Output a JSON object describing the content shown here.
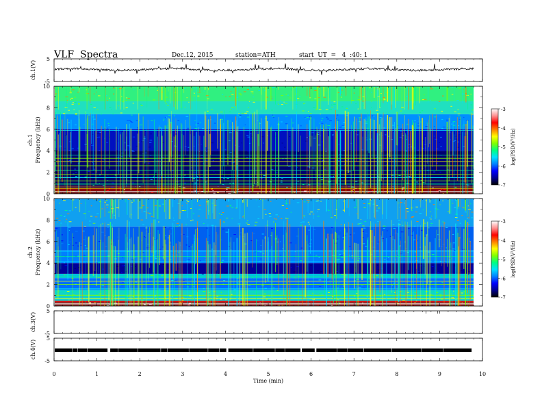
{
  "header": {
    "title": "VLF  Spectra",
    "date": "Dec.12, 2015",
    "station": "station=ATH",
    "start": "start  UT  =   4  :40: 1"
  },
  "chart_data": {
    "type": "heatmap",
    "title": "VLF  Spectra",
    "xlabel": "Time  (min)",
    "xlim": [
      0,
      10
    ],
    "x_ticks": [
      "0",
      "1",
      "2",
      "3",
      "4",
      "5",
      "6",
      "7",
      "8",
      "9",
      "10"
    ],
    "panels": [
      {
        "kind": "waveform",
        "ylabel": "ch.1(V)",
        "ylim": [
          -5,
          5
        ],
        "y_ticks": [
          "5",
          "-5"
        ],
        "data_end_min": 9.8,
        "signal": "continuous noisy trace near +0.3 V with spikes"
      },
      {
        "kind": "spectrogram",
        "channel": "ch.1",
        "ylabel": "Frequency  (kHz)",
        "ylim": [
          0,
          10
        ],
        "y_ticks": [
          "0",
          "2",
          "4",
          "6",
          "8",
          "10"
        ],
        "data_end_min": 9.8,
        "colorbar": {
          "label": "log(PSD(V²/Hz)",
          "range": [
            -7,
            -3
          ],
          "ticks": [
            "-3",
            "-4",
            "-5",
            "-6",
            "-7"
          ],
          "colormap": [
            "#000000",
            "#00008f",
            "#0000ff",
            "#0080ff",
            "#00e0ff",
            "#00ff80",
            "#80ff00",
            "#ffff00",
            "#ff8000",
            "#ff0000",
            "#ff9090",
            "#ffffff"
          ]
        },
        "description": "strong broadband power (green/yellow) above 6 kHz, weak (dark blue) 1–6 kHz, horizontal spectral lines below 4 kHz, vertical impulsive sferics"
      },
      {
        "kind": "spectrogram",
        "channel": "ch.2",
        "ylabel": "Frequency  (kHz)",
        "ylim": [
          0,
          10
        ],
        "y_ticks": [
          "0",
          "2",
          "4",
          "6",
          "8",
          "10"
        ],
        "data_end_min": 9.8,
        "colorbar": {
          "label": "log(PSD(V²/Hz)",
          "range": [
            -7,
            -3
          ],
          "ticks": [
            "-3",
            "-4",
            "-5",
            "-6",
            "-7"
          ],
          "colormap": [
            "#000000",
            "#00008f",
            "#0000ff",
            "#0080ff",
            "#00e0ff",
            "#00ff80",
            "#80ff00",
            "#ffff00",
            "#ff8000",
            "#ff0000",
            "#ff9090",
            "#ffffff"
          ]
        },
        "description": "mostly cyan/blue power, dark band near 3.5 kHz, bright bands below 2.5 kHz, vertical impulsive sferics"
      },
      {
        "kind": "waveform",
        "ylabel": "ch.3(V)",
        "ylim": [
          -5,
          5
        ],
        "y_ticks": [
          "5",
          "-5"
        ],
        "signal": "no visible trace"
      },
      {
        "kind": "waveform",
        "ylabel": "ch.4(V)",
        "ylim": [
          -5,
          5
        ],
        "y_ticks": [
          "5",
          "-5"
        ],
        "data_end_min": 9.8,
        "signal": "thick pulse train near 0 V with brief gaps"
      }
    ]
  }
}
